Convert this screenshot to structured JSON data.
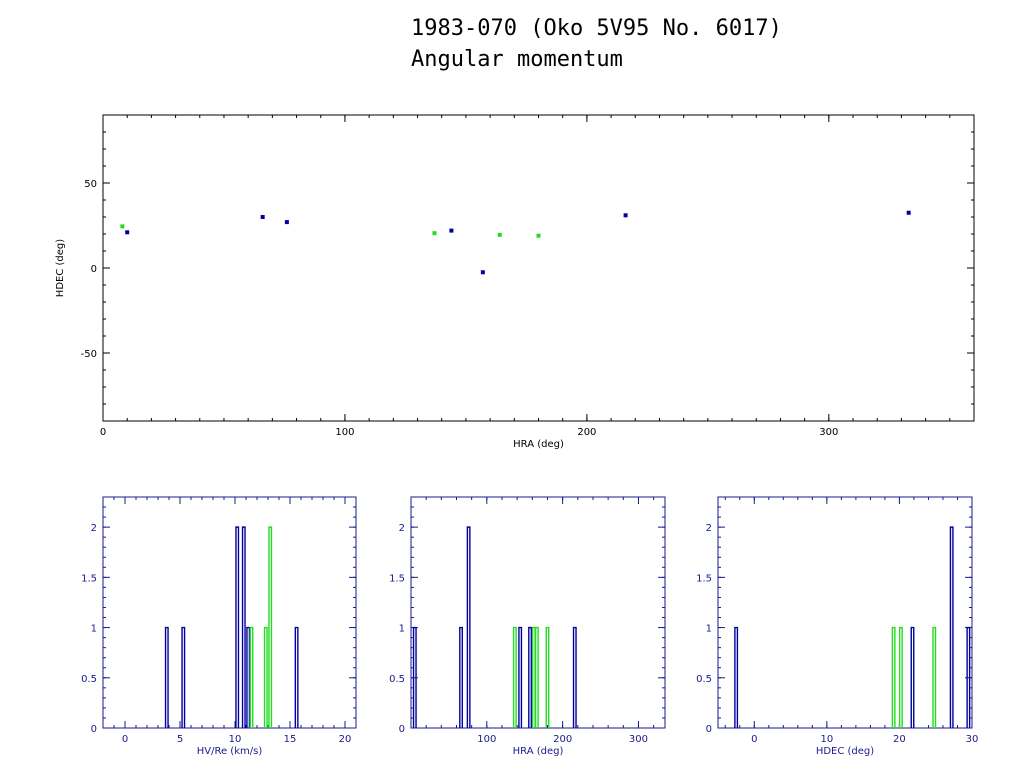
{
  "header": {
    "title_line1": "1983-070 (Oko 5V95 No. 6017)",
    "title_line2": "Angular momentum"
  },
  "colors": {
    "axis": "#000000",
    "hist_axis": "#1a1a8c",
    "blue": "#0000a0",
    "green": "#22dd22"
  },
  "chart_data": [
    {
      "id": "scatter",
      "type": "scatter",
      "xlabel": "HRA (deg)",
      "ylabel": "HDEC (deg)",
      "xlim": [
        0,
        360
      ],
      "ylim": [
        -90,
        90
      ],
      "xticks": [
        0,
        100,
        200,
        300
      ],
      "yticks": [
        -50,
        0,
        50
      ],
      "series": [
        {
          "color": "blue",
          "points": [
            [
              10,
              21
            ],
            [
              66,
              30
            ],
            [
              76,
              27
            ],
            [
              144,
              22
            ],
            [
              157,
              -2.5
            ],
            [
              216,
              31
            ],
            [
              333,
              32.5
            ]
          ]
        },
        {
          "color": "green",
          "points": [
            [
              8,
              24.5
            ],
            [
              137,
              20.5
            ],
            [
              164,
              19.5
            ],
            [
              180,
              19
            ]
          ]
        }
      ]
    },
    {
      "id": "hist-velocity",
      "type": "bar",
      "xlabel": "HV/Re (km/s)",
      "xlim": [
        -2,
        21
      ],
      "ylim": [
        0,
        2.3
      ],
      "xticks": [
        0,
        5,
        10,
        15,
        20
      ],
      "yticks": [
        0,
        0.5,
        1,
        1.5,
        2
      ],
      "ytick_labels": [
        "0",
        "0.5",
        "1",
        "1.5",
        "2"
      ],
      "bins": [
        {
          "x": 3.8,
          "count": 1,
          "color": "blue"
        },
        {
          "x": 5.3,
          "count": 1,
          "color": "blue"
        },
        {
          "x": 10.2,
          "count": 2,
          "color": "blue"
        },
        {
          "x": 10.8,
          "count": 2,
          "color": "blue"
        },
        {
          "x": 11.2,
          "count": 1,
          "color": "blue"
        },
        {
          "x": 11.5,
          "count": 1,
          "color": "green"
        },
        {
          "x": 12.8,
          "count": 1,
          "color": "green"
        },
        {
          "x": 13.2,
          "count": 2,
          "color": "green"
        },
        {
          "x": 15.6,
          "count": 1,
          "color": "blue"
        }
      ]
    },
    {
      "id": "hist-hra",
      "type": "bar",
      "xlabel": "HRA (deg)",
      "xlim": [
        0,
        335
      ],
      "ylim": [
        0,
        2.3
      ],
      "xticks": [
        100,
        200,
        300
      ],
      "yticks": [
        0,
        0.5,
        1,
        1.5,
        2
      ],
      "ytick_labels": [
        "0",
        "0.5",
        "1",
        "1.5",
        "2"
      ],
      "bins": [
        {
          "x": 5,
          "count": 1,
          "color": "blue"
        },
        {
          "x": 66,
          "count": 1,
          "color": "blue"
        },
        {
          "x": 76,
          "count": 2,
          "color": "blue"
        },
        {
          "x": 137,
          "count": 1,
          "color": "green"
        },
        {
          "x": 144,
          "count": 1,
          "color": "blue"
        },
        {
          "x": 157,
          "count": 1,
          "color": "blue"
        },
        {
          "x": 162,
          "count": 1,
          "color": "green"
        },
        {
          "x": 166,
          "count": 1,
          "color": "green"
        },
        {
          "x": 180,
          "count": 1,
          "color": "green"
        },
        {
          "x": 216,
          "count": 1,
          "color": "blue"
        }
      ]
    },
    {
      "id": "hist-hdec",
      "type": "bar",
      "xlabel": "HDEC (deg)",
      "xlim": [
        -5,
        30
      ],
      "ylim": [
        0,
        2.3
      ],
      "xticks": [
        0,
        10,
        20,
        30
      ],
      "yticks": [
        0,
        0.5,
        1,
        1.5,
        2
      ],
      "ytick_labels": [
        "0",
        "0.5",
        "1",
        "1.5",
        "2"
      ],
      "bins": [
        {
          "x": -2.5,
          "count": 1,
          "color": "blue"
        },
        {
          "x": 19.2,
          "count": 1,
          "color": "green"
        },
        {
          "x": 20.2,
          "count": 1,
          "color": "green"
        },
        {
          "x": 21.8,
          "count": 1,
          "color": "blue"
        },
        {
          "x": 24.8,
          "count": 1,
          "color": "green"
        },
        {
          "x": 27.2,
          "count": 2,
          "color": "blue"
        },
        {
          "x": 29.5,
          "count": 1,
          "color": "blue"
        }
      ]
    }
  ]
}
